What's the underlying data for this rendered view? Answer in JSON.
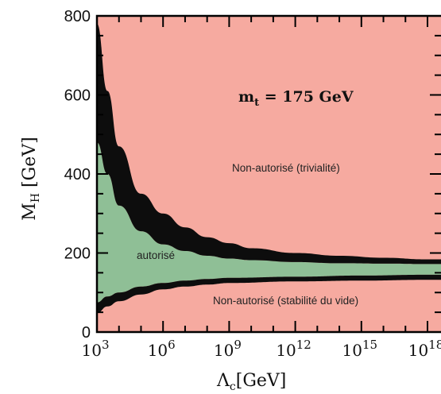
{
  "chart_data": {
    "type": "area",
    "title": "",
    "annotation": "m_t = 175 GeV",
    "annotation_main": "m",
    "annotation_sub": "t",
    "annotation_rest": " = 175 GeV",
    "xlabel_main": "Λ",
    "xlabel_sub": "c",
    "xlabel_unit": "[GeV]",
    "ylabel_main": "M",
    "ylabel_sub": "H",
    "ylabel_unit": "[GeV]",
    "x_scale": "log",
    "xlim": [
      1000,
      1e+18
    ],
    "ylim": [
      0,
      800
    ],
    "x_ticks": [
      {
        "base": "10",
        "exp": "3",
        "value": 1000
      },
      {
        "base": "10",
        "exp": "6",
        "value": 1000000
      },
      {
        "base": "10",
        "exp": "9",
        "value": 1000000000
      },
      {
        "base": "10",
        "exp": "12",
        "value": 1000000000000
      },
      {
        "base": "10",
        "exp": "15",
        "value": 1000000000000000
      },
      {
        "base": "10",
        "exp": "18",
        "value": 1000000000000000000
      }
    ],
    "y_ticks": [
      "0",
      "200",
      "400",
      "600",
      "800"
    ],
    "y_tick_values": [
      0,
      200,
      400,
      600,
      800
    ],
    "region_labels": {
      "upper": "Non-autorisé (trivialité)",
      "middle": "autorisé",
      "lower": "Non-autorisé (stabilité du vide)"
    },
    "colors": {
      "excluded": "#f6aaa0",
      "allowed": "#8fbf96",
      "band": "#0d0d0d"
    },
    "upper_bound": {
      "x": [
        1000,
        3000,
        10000,
        100000,
        1000000,
        10000000,
        100000000,
        1000000000,
        10000000000,
        1000000000000.0,
        100000000000000.0,
        1e+16,
        1e+18
      ],
      "lower_edge": [
        480,
        400,
        320,
        255,
        222,
        205,
        193,
        186,
        182,
        177,
        174,
        173,
        172
      ],
      "upper_edge": [
        780,
        610,
        470,
        350,
        300,
        265,
        240,
        225,
        212,
        200,
        193,
        188,
        184
      ]
    },
    "lower_bound": {
      "x": [
        1000,
        3000,
        10000,
        100000,
        1000000,
        10000000,
        100000000,
        1000000000,
        1000000000000.0,
        1000000000000000.0,
        1e+18
      ],
      "lower_edge": [
        48,
        65,
        78,
        95,
        108,
        115,
        120,
        124,
        128,
        130,
        132
      ],
      "upper_edge": [
        75,
        90,
        100,
        115,
        124,
        130,
        134,
        137,
        140,
        143,
        145
      ]
    }
  }
}
